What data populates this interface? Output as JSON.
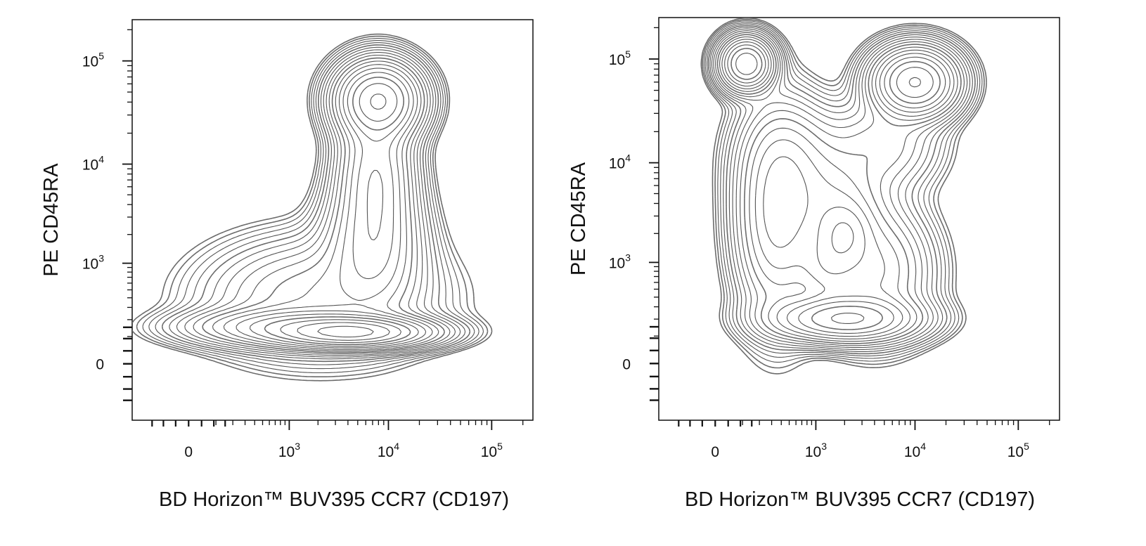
{
  "chart_data": [
    {
      "type": "contour",
      "panel": "left",
      "xlabel": "BD Horizon™ BUV395 CCR7 (CD197)",
      "ylabel": "PE CD45RA",
      "x_scale": "biexponential",
      "y_scale": "biexponential",
      "xlim": [
        -300,
        250000
      ],
      "ylim": [
        -300,
        250000
      ],
      "x_ticks": [
        {
          "value": 0,
          "base": "0",
          "exp": ""
        },
        {
          "value": 1000,
          "base": "10",
          "exp": "3"
        },
        {
          "value": 10000,
          "base": "10",
          "exp": "4"
        },
        {
          "value": 100000,
          "base": "10",
          "exp": "5"
        }
      ],
      "y_ticks": [
        {
          "value": 0,
          "base": "0",
          "exp": ""
        },
        {
          "value": 1000,
          "base": "10",
          "exp": "3"
        },
        {
          "value": 10000,
          "base": "10",
          "exp": "4"
        },
        {
          "value": 100000,
          "base": "10",
          "exp": "5"
        }
      ],
      "grid": false,
      "legend": "none",
      "line_color": "#555555",
      "dense_color": "#6b6b6b",
      "populations": [
        {
          "x": 8000,
          "y": 42000,
          "sx": 0.22,
          "sy": 0.2,
          "w": 1.0
        },
        {
          "x": 4500,
          "y": 120,
          "sx": 0.4,
          "sy": 0.08,
          "w": 1.25
        },
        {
          "x": 1200,
          "y": 150,
          "sx": 0.55,
          "sy": 0.1,
          "w": 0.45
        },
        {
          "x": 7000,
          "y": 1500,
          "sx": 0.26,
          "sy": 0.35,
          "w": 0.3
        },
        {
          "x": 7500,
          "y": 8000,
          "sx": 0.2,
          "sy": 0.4,
          "w": 0.4
        },
        {
          "x": 2000,
          "y": 400,
          "sx": 0.6,
          "sy": 0.32,
          "w": 0.18
        }
      ]
    },
    {
      "type": "contour",
      "panel": "right",
      "xlabel": "BD Horizon™ BUV395 CCR7 (CD197)",
      "ylabel": "PE CD45RA",
      "x_scale": "biexponential",
      "y_scale": "biexponential",
      "xlim": [
        -300,
        250000
      ],
      "ylim": [
        -300,
        250000
      ],
      "x_ticks": [
        {
          "value": 0,
          "base": "0",
          "exp": ""
        },
        {
          "value": 1000,
          "base": "10",
          "exp": "3"
        },
        {
          "value": 10000,
          "base": "10",
          "exp": "4"
        },
        {
          "value": 100000,
          "base": "10",
          "exp": "5"
        }
      ],
      "y_ticks": [
        {
          "value": 0,
          "base": "0",
          "exp": ""
        },
        {
          "value": 1000,
          "base": "10",
          "exp": "3"
        },
        {
          "value": 10000,
          "base": "10",
          "exp": "4"
        },
        {
          "value": 100000,
          "base": "10",
          "exp": "5"
        }
      ],
      "grid": false,
      "legend": "none",
      "line_color": "#555555",
      "dense_color": "#6b6b6b",
      "populations": [
        {
          "x": 120,
          "y": 90000,
          "sx": 0.14,
          "sy": 0.14,
          "w": 1.0
        },
        {
          "x": 10000,
          "y": 60000,
          "sx": 0.22,
          "sy": 0.18,
          "w": 1.05
        },
        {
          "x": 2000,
          "y": 200,
          "sx": 0.38,
          "sy": 0.12,
          "w": 0.75
        },
        {
          "x": 350,
          "y": 3000,
          "sx": 0.22,
          "sy": 0.55,
          "w": 0.35
        },
        {
          "x": 1500,
          "y": 4000,
          "sx": 0.3,
          "sy": 0.3,
          "w": 0.2
        },
        {
          "x": 2000,
          "y": 2000,
          "sx": 0.15,
          "sy": 0.18,
          "w": 0.22
        },
        {
          "x": 1300,
          "y": 900,
          "sx": 0.18,
          "sy": 0.22,
          "w": 0.2
        },
        {
          "x": 4000,
          "y": 800,
          "sx": 0.3,
          "sy": 0.35,
          "w": 0.25
        },
        {
          "x": 600,
          "y": 12000,
          "sx": 0.3,
          "sy": 0.3,
          "w": 0.12
        },
        {
          "x": 5000,
          "y": 15000,
          "sx": 0.3,
          "sy": 0.25,
          "w": 0.12
        }
      ]
    }
  ]
}
